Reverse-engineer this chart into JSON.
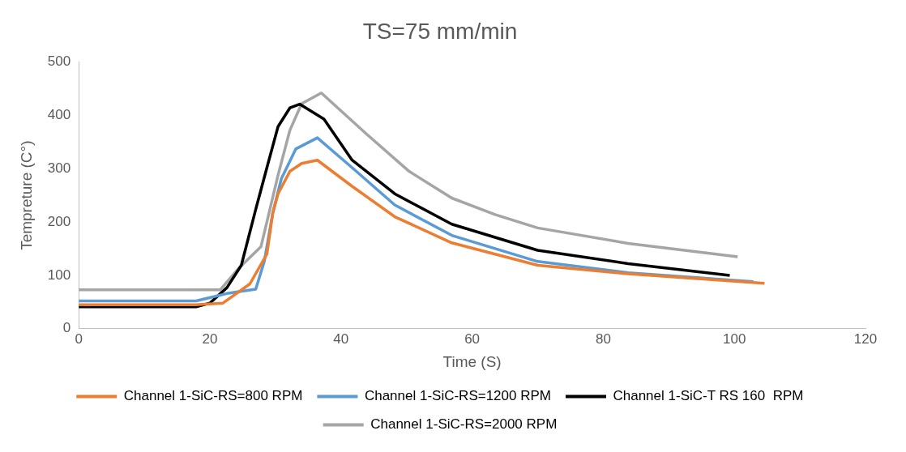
{
  "chart_data": {
    "type": "line",
    "title": "TS=75 mm/min",
    "xlabel": "Time (S)",
    "ylabel": "Tempreture (C°)",
    "xlim": [
      0,
      120
    ],
    "xticks": [
      0,
      20,
      40,
      60,
      80,
      100,
      120
    ],
    "ylim": [
      0,
      500
    ],
    "yticks": [
      0,
      100,
      200,
      300,
      400,
      500
    ],
    "grid": false,
    "legend": "bottom",
    "marker": "none",
    "line_style": "solid",
    "series": [
      {
        "name": "Channel 1-SiC-RS=800 RPM",
        "color": "#ed7d31",
        "x": [
          0,
          17.9,
          22.0,
          26.1,
          28.7,
          29.6,
          30.4,
          32.2,
          34.0,
          36.4,
          41.7,
          48.2,
          56.9,
          70.0,
          83.8,
          104.6
        ],
        "values": [
          45,
          45,
          48,
          84,
          140,
          217,
          253,
          295,
          310,
          316,
          267,
          210,
          161,
          119,
          103,
          85
        ]
      },
      {
        "name": "Channel 1-SiC-RS=1200 RPM",
        "color": "#5b9bd5",
        "x": [
          0,
          17.9,
          22.6,
          27.0,
          28.3,
          29.6,
          30.9,
          33.1,
          36.4,
          41.7,
          48.2,
          56.9,
          70.0,
          83.8,
          102.9
        ],
        "values": [
          52,
          52,
          66,
          74,
          126,
          217,
          281,
          337,
          358,
          302,
          232,
          175,
          126,
          105,
          88
        ]
      },
      {
        "name": "Channel 1-SiC-T RS 160  RPM",
        "color": "#000000",
        "x": [
          0,
          17.9,
          20.0,
          22.6,
          24.8,
          27.0,
          28.7,
          30.4,
          32.2,
          33.7,
          37.4,
          41.7,
          48.2,
          56.9,
          70.0,
          83.8,
          99.3
        ],
        "values": [
          41,
          41,
          48,
          77,
          119,
          224,
          302,
          379,
          414,
          421,
          393,
          316,
          253,
          196,
          147,
          122,
          100
        ]
      },
      {
        "name": "Channel 1-SiC-RS=2000 RPM",
        "color": "#a5a5a5",
        "x": [
          0,
          21.6,
          24.3,
          27.8,
          30.4,
          32.2,
          34.0,
          37.0,
          43.9,
          50.4,
          56.9,
          63.5,
          70.0,
          83.8,
          100.5
        ],
        "values": [
          73,
          73,
          112,
          154,
          288,
          372,
          422,
          442,
          365,
          295,
          245,
          214,
          189,
          160,
          135
        ]
      }
    ]
  }
}
